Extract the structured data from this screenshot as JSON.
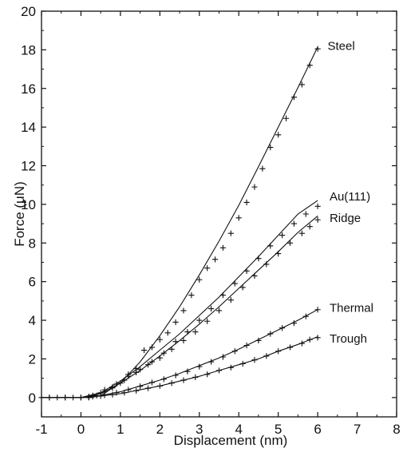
{
  "chart_data": {
    "type": "scatter",
    "title": "",
    "xlabel": "Displacement (nm)",
    "ylabel": "Force (μN)",
    "xlim": [
      -1,
      8
    ],
    "ylim": [
      -1,
      20
    ],
    "x_ticks": [
      -1,
      0,
      1,
      2,
      3,
      4,
      5,
      6,
      7,
      8
    ],
    "x_tick_labels": [
      "-1",
      "0",
      "1",
      "2",
      "3",
      "4",
      "5",
      "6",
      "7",
      "8"
    ],
    "y_ticks": [
      0,
      2,
      4,
      6,
      8,
      10,
      12,
      14,
      16,
      18,
      20
    ],
    "y_tick_labels": [
      "0",
      "2",
      "4",
      "6",
      "8",
      "10",
      "12",
      "14",
      "16",
      "18",
      "20"
    ],
    "grid": false,
    "legend": "none",
    "marker": "+",
    "fit_curves": true,
    "series": [
      {
        "name": "Steel",
        "fit": [
          [
            0.25,
            0
          ],
          [
            0.5,
            0.1
          ],
          [
            1.0,
            0.75
          ],
          [
            1.5,
            1.85
          ],
          [
            2.0,
            3.2
          ],
          [
            2.5,
            4.7
          ],
          [
            3.0,
            6.35
          ],
          [
            3.5,
            8.1
          ],
          [
            4.0,
            9.95
          ],
          [
            4.5,
            11.95
          ],
          [
            5.0,
            14.0
          ],
          [
            5.5,
            16.05
          ],
          [
            6.0,
            18.15
          ]
        ],
        "points": [
          [
            -1.0,
            0.0
          ],
          [
            -0.8,
            0.0
          ],
          [
            -0.6,
            0.0
          ],
          [
            -0.4,
            0.0
          ],
          [
            -0.2,
            0.0
          ],
          [
            0.0,
            0.0
          ],
          [
            0.2,
            0.0
          ],
          [
            0.4,
            0.1
          ],
          [
            0.6,
            0.3
          ],
          [
            0.8,
            0.5
          ],
          [
            1.0,
            0.75
          ],
          [
            1.2,
            1.2
          ],
          [
            1.4,
            1.5
          ],
          [
            1.6,
            2.45
          ],
          [
            1.8,
            2.6
          ],
          [
            2.0,
            3.0
          ],
          [
            2.2,
            3.35
          ],
          [
            2.4,
            3.9
          ],
          [
            2.6,
            4.5
          ],
          [
            2.8,
            5.3
          ],
          [
            3.0,
            6.1
          ],
          [
            3.2,
            6.7
          ],
          [
            3.4,
            7.15
          ],
          [
            3.6,
            7.75
          ],
          [
            3.8,
            8.5
          ],
          [
            4.0,
            9.3
          ],
          [
            4.2,
            10.1
          ],
          [
            4.4,
            10.9
          ],
          [
            4.6,
            11.85
          ],
          [
            4.8,
            12.95
          ],
          [
            5.0,
            13.6
          ],
          [
            5.2,
            14.45
          ],
          [
            5.4,
            15.55
          ],
          [
            5.6,
            16.2
          ],
          [
            5.8,
            17.2
          ],
          [
            6.0,
            18.05
          ]
        ]
      },
      {
        "name": "Au(111)",
        "fit": [
          [
            0.0,
            0
          ],
          [
            0.5,
            0.25
          ],
          [
            1.0,
            0.85
          ],
          [
            1.5,
            1.6
          ],
          [
            2.0,
            2.45
          ],
          [
            2.5,
            3.3
          ],
          [
            3.0,
            4.25
          ],
          [
            3.5,
            5.2
          ],
          [
            4.0,
            6.25
          ],
          [
            4.5,
            7.3
          ],
          [
            5.0,
            8.4
          ],
          [
            5.5,
            9.5
          ],
          [
            6.0,
            10.2
          ]
        ],
        "points": [
          [
            -0.8,
            0.0
          ],
          [
            -0.4,
            0.0
          ],
          [
            0.0,
            0.0
          ],
          [
            0.3,
            0.1
          ],
          [
            0.6,
            0.4
          ],
          [
            0.9,
            0.7
          ],
          [
            1.2,
            1.1
          ],
          [
            1.5,
            1.45
          ],
          [
            1.8,
            1.85
          ],
          [
            2.1,
            2.3
          ],
          [
            2.4,
            2.9
          ],
          [
            2.7,
            3.4
          ],
          [
            3.0,
            4.0
          ],
          [
            3.3,
            4.6
          ],
          [
            3.6,
            5.3
          ],
          [
            3.9,
            5.9
          ],
          [
            4.2,
            6.55
          ],
          [
            4.5,
            7.2
          ],
          [
            4.8,
            7.85
          ],
          [
            5.1,
            8.4
          ],
          [
            5.4,
            9.0
          ],
          [
            5.7,
            9.5
          ],
          [
            6.0,
            9.9
          ]
        ]
      },
      {
        "name": "Ridge",
        "fit": [
          [
            0.0,
            0
          ],
          [
            0.5,
            0.2
          ],
          [
            1.0,
            0.75
          ],
          [
            1.5,
            1.4
          ],
          [
            2.0,
            2.15
          ],
          [
            2.5,
            2.95
          ],
          [
            3.0,
            3.8
          ],
          [
            3.5,
            4.7
          ],
          [
            4.0,
            5.65
          ],
          [
            4.5,
            6.6
          ],
          [
            5.0,
            7.55
          ],
          [
            5.5,
            8.55
          ],
          [
            6.0,
            9.4
          ]
        ],
        "points": [
          [
            0.2,
            0.05
          ],
          [
            0.5,
            0.25
          ],
          [
            0.8,
            0.55
          ],
          [
            1.1,
            0.9
          ],
          [
            1.4,
            1.3
          ],
          [
            1.7,
            1.7
          ],
          [
            2.0,
            2.05
          ],
          [
            2.3,
            2.5
          ],
          [
            2.6,
            2.95
          ],
          [
            2.9,
            3.4
          ],
          [
            3.2,
            3.95
          ],
          [
            3.5,
            4.5
          ],
          [
            3.8,
            5.05
          ],
          [
            4.1,
            5.7
          ],
          [
            4.4,
            6.3
          ],
          [
            4.7,
            6.9
          ],
          [
            5.0,
            7.45
          ],
          [
            5.3,
            8.0
          ],
          [
            5.6,
            8.5
          ],
          [
            5.8,
            8.85
          ],
          [
            6.0,
            9.2
          ]
        ]
      },
      {
        "name": "Thermal",
        "fit": [
          [
            0.0,
            0
          ],
          [
            0.5,
            0.1
          ],
          [
            1.0,
            0.3
          ],
          [
            1.5,
            0.6
          ],
          [
            2.0,
            0.9
          ],
          [
            2.5,
            1.25
          ],
          [
            3.0,
            1.65
          ],
          [
            3.5,
            2.05
          ],
          [
            4.0,
            2.5
          ],
          [
            4.5,
            3.0
          ],
          [
            5.0,
            3.5
          ],
          [
            5.5,
            4.0
          ],
          [
            6.0,
            4.55
          ]
        ],
        "points": [
          [
            0.0,
            0.0
          ],
          [
            0.3,
            0.05
          ],
          [
            0.6,
            0.12
          ],
          [
            0.9,
            0.25
          ],
          [
            1.2,
            0.4
          ],
          [
            1.5,
            0.58
          ],
          [
            1.8,
            0.78
          ],
          [
            2.1,
            0.95
          ],
          [
            2.4,
            1.15
          ],
          [
            2.7,
            1.35
          ],
          [
            3.0,
            1.6
          ],
          [
            3.3,
            1.85
          ],
          [
            3.6,
            2.1
          ],
          [
            3.9,
            2.4
          ],
          [
            4.2,
            2.7
          ],
          [
            4.5,
            2.95
          ],
          [
            4.8,
            3.3
          ],
          [
            5.1,
            3.6
          ],
          [
            5.4,
            3.85
          ],
          [
            5.7,
            4.2
          ],
          [
            6.0,
            4.55
          ]
        ]
      },
      {
        "name": "Trough",
        "fit": [
          [
            0.0,
            0
          ],
          [
            0.5,
            0.08
          ],
          [
            1.0,
            0.2
          ],
          [
            1.5,
            0.4
          ],
          [
            2.0,
            0.6
          ],
          [
            2.5,
            0.85
          ],
          [
            3.0,
            1.1
          ],
          [
            3.5,
            1.4
          ],
          [
            4.0,
            1.7
          ],
          [
            4.5,
            2.0
          ],
          [
            5.0,
            2.4
          ],
          [
            5.5,
            2.75
          ],
          [
            6.0,
            3.15
          ]
        ],
        "points": [
          [
            0.2,
            0.02
          ],
          [
            0.5,
            0.08
          ],
          [
            0.8,
            0.15
          ],
          [
            1.1,
            0.25
          ],
          [
            1.4,
            0.35
          ],
          [
            1.7,
            0.48
          ],
          [
            2.0,
            0.6
          ],
          [
            2.3,
            0.75
          ],
          [
            2.6,
            0.9
          ],
          [
            2.9,
            1.05
          ],
          [
            3.2,
            1.2
          ],
          [
            3.5,
            1.4
          ],
          [
            3.8,
            1.55
          ],
          [
            4.1,
            1.75
          ],
          [
            4.4,
            1.95
          ],
          [
            4.7,
            2.15
          ],
          [
            5.0,
            2.4
          ],
          [
            5.3,
            2.6
          ],
          [
            5.6,
            2.8
          ],
          [
            5.8,
            3.0
          ],
          [
            6.0,
            3.1
          ]
        ]
      }
    ]
  }
}
